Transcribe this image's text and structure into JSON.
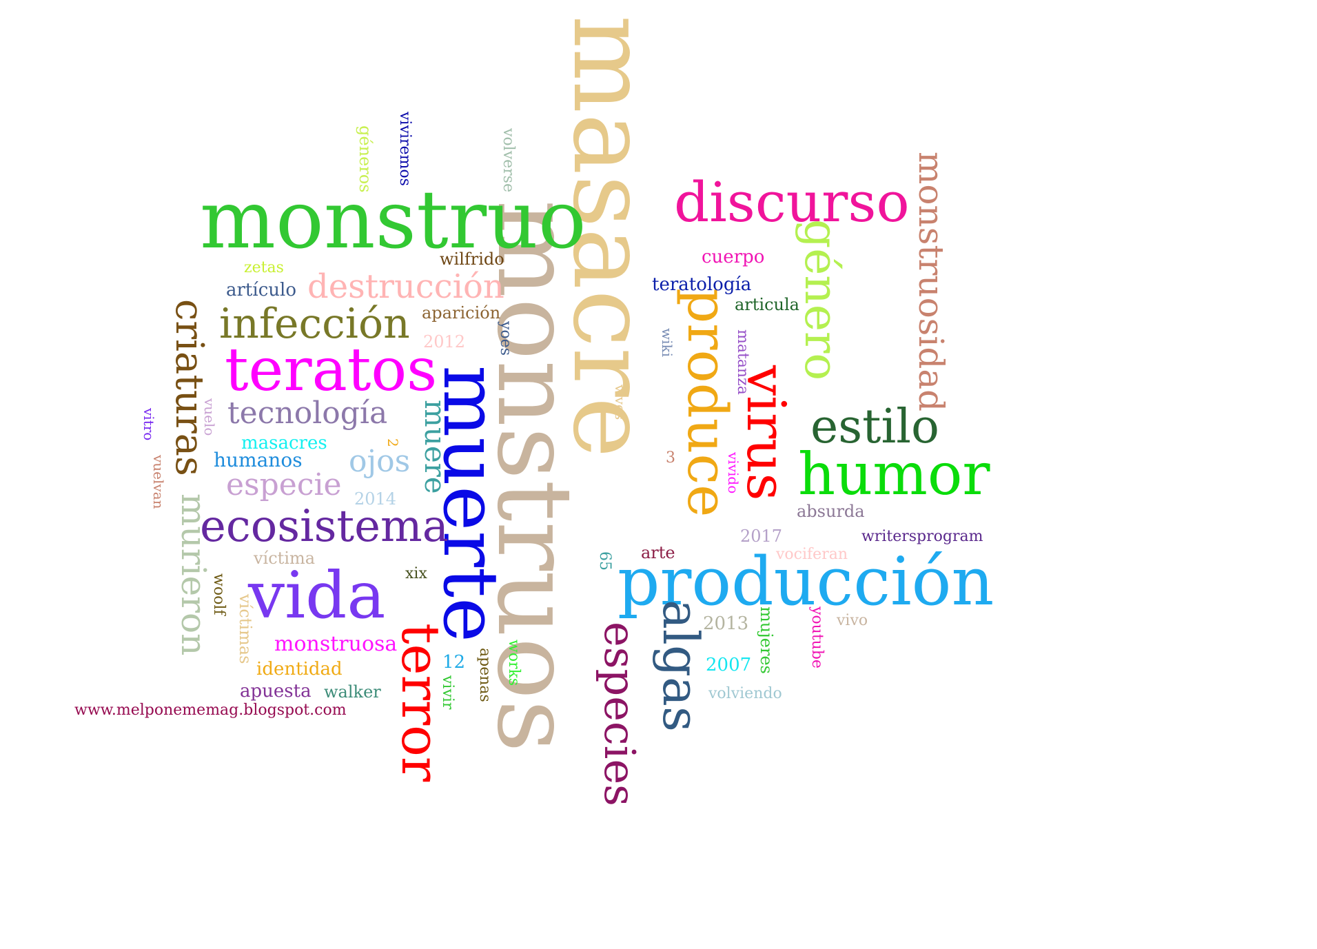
{
  "words": [
    {
      "text": "masacre",
      "color": "#e6c98a",
      "rot": 90
    },
    {
      "text": "monstruos",
      "color": "#c8b49e",
      "rot": 90
    },
    {
      "text": "monstruo",
      "color": "#32c832",
      "rot": 0
    },
    {
      "text": "muerte",
      "color": "#0a0ae6",
      "rot": 90
    },
    {
      "text": "producción",
      "color": "#1eaaf0",
      "rot": 0
    },
    {
      "text": "discurso",
      "color": "#f0149b",
      "rot": 0
    },
    {
      "text": "vida",
      "color": "#7838f0",
      "rot": 0
    },
    {
      "text": "teratos",
      "color": "#ff00ff",
      "rot": 0
    },
    {
      "text": "humor",
      "color": "#0adc0a",
      "rot": 0
    },
    {
      "text": "produce",
      "color": "#f0a814",
      "rot": 90
    },
    {
      "text": "virus",
      "color": "#ff0000",
      "rot": 90
    },
    {
      "text": "terror",
      "color": "#ff0000",
      "rot": 90
    },
    {
      "text": "género",
      "color": "#b4f050",
      "rot": 90
    },
    {
      "text": "infección",
      "color": "#787828",
      "rot": 0
    },
    {
      "text": "ecosistema",
      "color": "#6428a0",
      "rot": 0
    },
    {
      "text": "estilo",
      "color": "#286432",
      "rot": 0
    },
    {
      "text": "algas",
      "color": "#325a82",
      "rot": 90
    },
    {
      "text": "especies",
      "color": "#8c1464",
      "rot": 90
    },
    {
      "text": "criaturas",
      "color": "#785014",
      "rot": 90
    },
    {
      "text": "monstruosidad",
      "color": "#c8826e",
      "rot": 90
    },
    {
      "text": "destrucción",
      "color": "#ffb4b4",
      "rot": 0
    },
    {
      "text": "murieron",
      "color": "#b4c8aa",
      "rot": 90
    },
    {
      "text": "tecnología",
      "color": "#8c78aa",
      "rot": 0
    },
    {
      "text": "muere",
      "color": "#3ca0a0",
      "rot": 90
    },
    {
      "text": "especie",
      "color": "#c8a0d2",
      "rot": 0
    },
    {
      "text": "ojos",
      "color": "#a0c8e6",
      "rot": 0
    },
    {
      "text": "monstruosa",
      "color": "#ff14ff",
      "rot": 0
    },
    {
      "text": "www.melponememag.blogspot.com",
      "color": "#960a50",
      "rot": 0
    },
    {
      "text": "humanos",
      "color": "#1e8cdc",
      "rot": 0
    },
    {
      "text": "masacres",
      "color": "#14f0f0",
      "rot": 0
    },
    {
      "text": "artículo",
      "color": "#3c5a8c",
      "rot": 0
    },
    {
      "text": "zetas",
      "color": "#c8f032",
      "rot": 0
    },
    {
      "text": "wilfrido",
      "color": "#6e4614",
      "rot": 0
    },
    {
      "text": "aparición",
      "color": "#8c6432",
      "rot": 0
    },
    {
      "text": "2012",
      "color": "#ffc8c8",
      "rot": 0
    },
    {
      "text": "2014",
      "color": "#b4d2e6",
      "rot": 0
    },
    {
      "text": "víctima",
      "color": "#c8b4a0",
      "rot": 0
    },
    {
      "text": "identidad",
      "color": "#f0aa14",
      "rot": 0
    },
    {
      "text": "apuesta",
      "color": "#823296",
      "rot": 0
    },
    {
      "text": "walker",
      "color": "#3c8c78",
      "rot": 0
    },
    {
      "text": "xix",
      "color": "#46501e",
      "rot": 0
    },
    {
      "text": "12",
      "color": "#1eaae6",
      "rot": 0
    },
    {
      "text": "cuerpo",
      "color": "#f014b4",
      "rot": 0
    },
    {
      "text": "teratología",
      "color": "#0a1eaa",
      "rot": 0
    },
    {
      "text": "articula",
      "color": "#1e6428",
      "rot": 0
    },
    {
      "text": "absurda",
      "color": "#8c7896",
      "rot": 0
    },
    {
      "text": "2017",
      "color": "#b4a0c8",
      "rot": 0
    },
    {
      "text": "writersprogram",
      "color": "#5a288c",
      "rot": 0
    },
    {
      "text": "arte",
      "color": "#8c1e46",
      "rot": 0
    },
    {
      "text": "vociferan",
      "color": "#ffc8c8",
      "rot": 0
    },
    {
      "text": "2013",
      "color": "#b4b4a0",
      "rot": 0
    },
    {
      "text": "2007",
      "color": "#14e6f0",
      "rot": 0
    },
    {
      "text": "vivo",
      "color": "#c8b4a0",
      "rot": 0
    },
    {
      "text": "volviendo",
      "color": "#a0c8d2",
      "rot": 0
    },
    {
      "text": "géneros",
      "color": "#c8f050",
      "rot": 90
    },
    {
      "text": "viviremos",
      "color": "#0a0aaa",
      "rot": 90
    },
    {
      "text": "volverse",
      "color": "#a0beaa",
      "rot": 90
    },
    {
      "text": "yoes",
      "color": "#3c5a8c",
      "rot": 90
    },
    {
      "text": "wiki",
      "color": "#788cb4",
      "rot": 90
    },
    {
      "text": "vivos",
      "color": "#e6c88c",
      "rot": 90
    },
    {
      "text": "matanza",
      "color": "#9650c8",
      "rot": 90
    },
    {
      "text": "vivido",
      "color": "#ff14ff",
      "rot": 90
    },
    {
      "text": "vuelo",
      "color": "#c8a0d2",
      "rot": 90
    },
    {
      "text": "vitro",
      "color": "#7828f0",
      "rot": 90
    },
    {
      "text": "vuelvan",
      "color": "#c8826e",
      "rot": 90
    },
    {
      "text": "woolf",
      "color": "#6e5a14",
      "rot": 90
    },
    {
      "text": "víctimas",
      "color": "#e6c88c",
      "rot": 90
    },
    {
      "text": "2",
      "color": "#f0a814",
      "rot": 90
    },
    {
      "text": "3",
      "color": "#c8826e",
      "rot": 0
    },
    {
      "text": "65",
      "color": "#3ca0a0",
      "rot": 90
    },
    {
      "text": "mujeres",
      "color": "#32c832",
      "rot": 90
    },
    {
      "text": "youtube",
      "color": "#f014b4",
      "rot": 90
    },
    {
      "text": "works",
      "color": "#32f032",
      "rot": 90
    },
    {
      "text": "apenas",
      "color": "#6e5a14",
      "rot": 90
    },
    {
      "text": "vivir",
      "color": "#32c832",
      "rot": 90
    }
  ]
}
